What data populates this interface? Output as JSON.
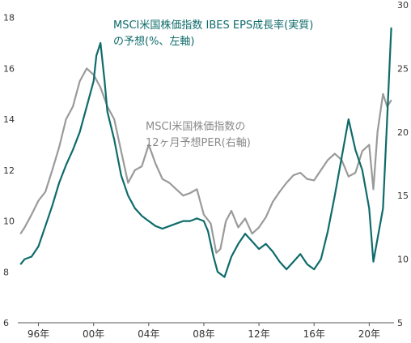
{
  "chart_data": {
    "type": "line",
    "x_tick_labels": [
      "96年",
      "00年",
      "04年",
      "08年",
      "12年",
      "16年",
      "20年"
    ],
    "x_tick_years": [
      1996,
      2000,
      2004,
      2008,
      2012,
      2016,
      2020
    ],
    "xlim": [
      1994.5,
      2021.8
    ],
    "y_left": {
      "ticks": [
        6,
        8,
        10,
        12,
        14,
        16,
        18
      ],
      "ylim": [
        6,
        18.5
      ]
    },
    "y_right": {
      "ticks": [
        5,
        10,
        15,
        20,
        25,
        30
      ],
      "ylim": [
        5,
        30
      ]
    },
    "annotations": [
      {
        "lines": [
          "MSCI米国株価指数 IBES EPS成長率(実質)",
          "の予想(%、左軸)"
        ],
        "series": "eps"
      },
      {
        "lines": [
          "MSCI米国株価指数の",
          "12ヶ月予想PER(右軸)"
        ],
        "series": "per"
      }
    ],
    "series": [
      {
        "id": "eps",
        "name": "MSCI米国株価指数 IBES EPS成長率(実質)の予想(%、左軸)",
        "axis": "left",
        "color": "#0f6b6b",
        "x": [
          1994.7,
          1995.0,
          1995.5,
          1996.0,
          1996.5,
          1997.0,
          1997.5,
          1998.0,
          1998.5,
          1999.0,
          1999.5,
          2000.0,
          2000.2,
          2000.5,
          2000.8,
          2001.0,
          2001.5,
          2002.0,
          2002.5,
          2003.0,
          2003.5,
          2004.0,
          2004.5,
          2005.0,
          2005.5,
          2006.0,
          2006.5,
          2007.0,
          2007.5,
          2008.0,
          2008.3,
          2008.7,
          2009.0,
          2009.5,
          2010.0,
          2010.5,
          2011.0,
          2011.5,
          2012.0,
          2012.5,
          2013.0,
          2013.5,
          2014.0,
          2014.5,
          2015.0,
          2015.5,
          2016.0,
          2016.5,
          2017.0,
          2017.5,
          2018.0,
          2018.5,
          2019.0,
          2019.5,
          2020.0,
          2020.3,
          2020.6,
          2021.0,
          2021.3,
          2021.6
        ],
        "y": [
          8.3,
          8.5,
          8.6,
          9.0,
          9.8,
          10.6,
          11.5,
          12.2,
          12.8,
          13.5,
          14.5,
          15.5,
          16.5,
          17.0,
          15.5,
          14.3,
          13.2,
          11.8,
          11.0,
          10.5,
          10.2,
          10.0,
          9.8,
          9.7,
          9.8,
          9.9,
          10.0,
          10.0,
          10.1,
          10.0,
          9.6,
          8.6,
          8.0,
          7.8,
          8.6,
          9.1,
          9.5,
          9.2,
          8.9,
          9.1,
          8.8,
          8.4,
          8.1,
          8.4,
          8.7,
          8.3,
          8.1,
          8.5,
          9.6,
          11.0,
          12.5,
          14.0,
          12.8,
          12.0,
          10.5,
          8.4,
          9.3,
          10.5,
          14.0,
          17.6
        ]
      },
      {
        "id": "per",
        "name": "MSCI米国株価指数の12ヶ月予想PER(右軸)",
        "axis": "right",
        "color": "#9a9a9a",
        "x": [
          1994.7,
          1995.0,
          1995.5,
          1996.0,
          1996.5,
          1997.0,
          1997.5,
          1998.0,
          1998.5,
          1999.0,
          1999.5,
          2000.0,
          2000.5,
          2001.0,
          2001.5,
          2002.0,
          2002.5,
          2003.0,
          2003.5,
          2004.0,
          2004.5,
          2005.0,
          2005.5,
          2006.0,
          2006.5,
          2007.0,
          2007.5,
          2008.0,
          2008.5,
          2008.9,
          2009.2,
          2009.6,
          2010.0,
          2010.5,
          2011.0,
          2011.5,
          2012.0,
          2012.5,
          2013.0,
          2013.5,
          2014.0,
          2014.5,
          2015.0,
          2015.5,
          2016.0,
          2016.5,
          2017.0,
          2017.5,
          2018.0,
          2018.5,
          2019.0,
          2019.5,
          2020.0,
          2020.3,
          2020.6,
          2021.0,
          2021.3,
          2021.6
        ],
        "y": [
          12.0,
          12.5,
          13.5,
          14.6,
          15.3,
          17.0,
          18.8,
          21.0,
          22.0,
          24.0,
          25.0,
          24.5,
          23.5,
          22.0,
          21.0,
          18.5,
          16.0,
          17.0,
          17.3,
          19.0,
          17.5,
          16.3,
          16.0,
          15.5,
          15.0,
          15.2,
          15.5,
          13.5,
          12.8,
          10.5,
          10.8,
          13.0,
          13.8,
          12.5,
          13.2,
          12.0,
          12.5,
          13.3,
          14.5,
          15.3,
          16.0,
          16.6,
          16.8,
          16.3,
          16.2,
          17.0,
          17.8,
          18.3,
          17.8,
          16.5,
          16.8,
          18.5,
          19.0,
          15.5,
          20.0,
          23.0,
          22.0,
          22.5
        ]
      }
    ]
  }
}
